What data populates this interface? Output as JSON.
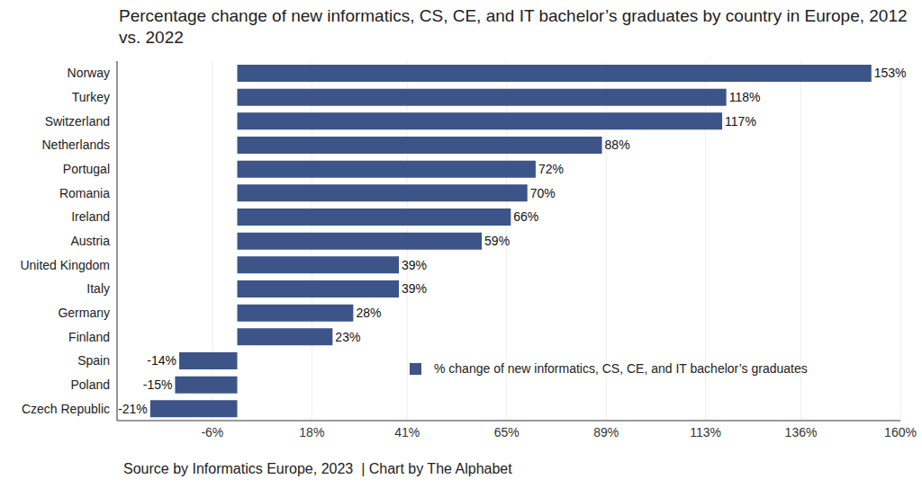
{
  "chart_data": {
    "type": "bar",
    "orientation": "horizontal",
    "title": "Percentage change of new informatics, CS, CE, and IT bachelor’s graduates by country in Europe, 2012 vs. 2022",
    "annotations": [
      "Source by Informatics Europe, 2023  | Chart by The Alphabet"
    ],
    "categories": [
      "Norway",
      "Turkey",
      "Switzerland",
      "Netherlands",
      "Portugal",
      "Romania",
      "Ireland",
      "Austria",
      "United Kingdom",
      "Italy",
      "Germany",
      "Finland",
      "Spain",
      "Poland",
      "Czech Republic"
    ],
    "series": [
      {
        "name": "% change of new informatics, CS, CE, and IT bachelor’s graduates",
        "color": "#3c5488",
        "values": [
          153,
          118,
          117,
          88,
          72,
          70,
          66,
          59,
          39,
          39,
          28,
          23,
          -14,
          -15,
          -21
        ],
        "value_labels": [
          "153%",
          "118%",
          "117%",
          "88%",
          "72%",
          "70%",
          "66%",
          "59%",
          "39%",
          "39%",
          "28%",
          "23%",
          "-14%",
          "-15%",
          "-21%"
        ]
      }
    ],
    "xlim": [
      -29,
      160
    ],
    "xticks": [
      {
        "value": -6,
        "label": "-6%"
      },
      {
        "value": 18,
        "label": "18%"
      },
      {
        "value": 41,
        "label": "41%"
      },
      {
        "value": 65,
        "label": "65%"
      },
      {
        "value": 89,
        "label": "89%"
      },
      {
        "value": 113,
        "label": "113%"
      },
      {
        "value": 136,
        "label": "136%"
      },
      {
        "value": 160,
        "label": "160%"
      }
    ],
    "grid": true,
    "legend": "lower right",
    "data_labels": true
  }
}
